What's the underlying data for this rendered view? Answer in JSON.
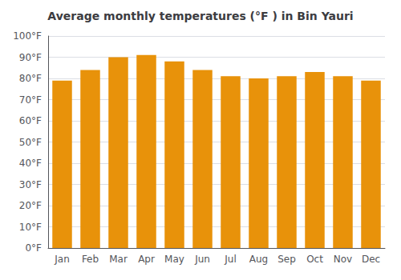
{
  "chart_data": {
    "type": "bar",
    "title": "Average monthly temperatures (°F ) in Bin Yauri",
    "categories": [
      "Jan",
      "Feb",
      "Mar",
      "Apr",
      "May",
      "Jun",
      "Jul",
      "Aug",
      "Sep",
      "Oct",
      "Nov",
      "Dec"
    ],
    "values": [
      79,
      84,
      90,
      91,
      88,
      84,
      81,
      80,
      81,
      83,
      81,
      79
    ],
    "color": "#E8920A",
    "ylim": [
      0,
      100
    ],
    "yticks": [
      {
        "value": 0,
        "label": "0°F"
      },
      {
        "value": 10,
        "label": "10°F"
      },
      {
        "value": 20,
        "label": "20°F"
      },
      {
        "value": 30,
        "label": "30°F"
      },
      {
        "value": 40,
        "label": "40°F"
      },
      {
        "value": 50,
        "label": "50°F"
      },
      {
        "value": 60,
        "label": "60°F"
      },
      {
        "value": 70,
        "label": "70°F"
      },
      {
        "value": 80,
        "label": "80°F"
      },
      {
        "value": 90,
        "label": "90°F"
      },
      {
        "value": 100,
        "label": "100°F"
      }
    ],
    "grid": true
  }
}
